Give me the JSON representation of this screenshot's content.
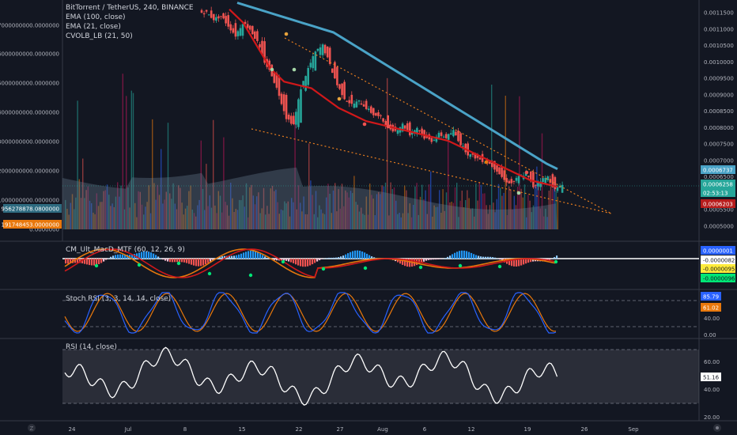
{
  "header": {
    "symbol_line": "BitTorrent / TetherUS, 240, BINANCE",
    "indicators": [
      "EMA (100, close)",
      "EMA (21, close)",
      "CVOLB_LB (21, 50)"
    ]
  },
  "colors": {
    "background": "#131722",
    "ema100": "#4aa3c7",
    "ema21": "#d1181a",
    "trendline": "#e87d1e",
    "candle_up": "#26a69a",
    "candle_down": "#ef5350",
    "pane_border": "#363a45"
  },
  "price_axis": {
    "ticks": [
      "0.0011500",
      "0.0011000",
      "0.0010500",
      "0.0010000",
      "0.0009500",
      "0.0009000",
      "0.0008500",
      "0.0008000",
      "0.0007500",
      "0.0007000",
      "0.0006500",
      "0.0006000",
      "0.0005500",
      "0.0005000"
    ],
    "tags": [
      {
        "label": "0.0006737",
        "bg": "#4aa3c7"
      },
      {
        "label": "0.0006258",
        "bg": "#26a69a"
      },
      {
        "label": "02:53:13",
        "bg": "#26a69a"
      },
      {
        "label": "0.0006203",
        "bg": "#b71c1c"
      }
    ]
  },
  "volume_axis": {
    "ticks": [
      "7000000000.0000000",
      "6000000000.0000000",
      "5000000000.0000000",
      "4000000000.0000000",
      "3000000000.0000000",
      "2000000000.0000000",
      "1000000000.0000000",
      "0.0000000"
    ],
    "tags": [
      {
        "label": "956278878.0800000",
        "bg": "#2e6b80"
      },
      {
        "label": "191748453.0000000",
        "bg": "#e8780c"
      }
    ]
  },
  "macd": {
    "label": "CM_Ult_MacD_MTF (60, 12, 26, 9)",
    "tags": [
      {
        "label": "0.0000001",
        "bg": "#2962ff"
      },
      {
        "label": "-0.0000082",
        "bg": "#ffffff"
      },
      {
        "label": "-0.0000095",
        "bg": "#ffeb3b"
      },
      {
        "label": "-0.0000096",
        "bg": "#00e676"
      }
    ]
  },
  "stoch": {
    "label": "Stoch RSI (3, 3, 14, 14, close)",
    "ticks": [
      "40.00",
      "0.00"
    ],
    "tags": [
      {
        "label": "85.79",
        "bg": "#2962ff"
      },
      {
        "label": "61.02",
        "bg": "#e8780c"
      }
    ]
  },
  "rsi": {
    "label": "RSI (14, close)",
    "ticks": [
      "60.00",
      "40.00",
      "20.00"
    ],
    "tags": [
      {
        "label": "51.16",
        "bg": "#ffffff"
      }
    ]
  },
  "time_axis": {
    "labels": [
      "24",
      "Jul",
      "8",
      "15",
      "22",
      "27",
      "Aug",
      "6",
      "12",
      "19",
      "26",
      "Sep"
    ]
  },
  "chart_data": {
    "type": "candlestick",
    "title": "BitTorrent / TetherUS, 240, BINANCE",
    "ylim": [
      0.00048,
      0.00117
    ],
    "closes": [
      0.00115,
      0.00113,
      0.00114,
      0.00111,
      0.00108,
      0.00112,
      0.0011,
      0.00106,
      0.001,
      0.00096,
      0.0009,
      0.00083,
      0.00081,
      0.00092,
      0.00098,
      0.00103,
      0.00105,
      0.00099,
      0.00093,
      0.00089,
      0.00087,
      0.00088,
      0.00086,
      0.00084,
      0.00083,
      0.0008,
      0.00079,
      0.00081,
      0.00078,
      0.0008,
      0.00077,
      0.00076,
      0.00078,
      0.00077,
      0.00079,
      0.00075,
      0.00072,
      0.00071,
      0.0007,
      0.00069,
      0.00067,
      0.00064,
      0.00063,
      0.00065,
      0.00066,
      0.00062,
      0.00064,
      0.00065,
      0.00061,
      0.00063
    ],
    "ema100": [
      0.00118,
      0.00117,
      0.00116,
      0.00115,
      0.00114,
      0.00113,
      0.00112,
      0.00111,
      0.0011,
      0.00109,
      0.00107,
      0.00105,
      0.00103,
      0.00101,
      0.00099,
      0.00097,
      0.00095,
      0.00093,
      0.00091,
      0.00089,
      0.00087,
      0.00085,
      0.00083,
      0.00081,
      0.00079,
      0.00077,
      0.00075,
      0.00073,
      0.00071,
      0.00069,
      0.000674
    ],
    "ema21": [
      0.00116,
      0.00112,
      0.00105,
      0.00098,
      0.00094,
      0.00093,
      0.00092,
      0.00089,
      0.00086,
      0.00084,
      0.00082,
      0.00081,
      0.0008,
      0.00079,
      0.00078,
      0.00077,
      0.00076,
      0.00074,
      0.00072,
      0.0007,
      0.00068,
      0.00066,
      0.00064,
      0.00063,
      0.00062
    ],
    "trendlines": [
      {
        "name": "upper",
        "from": [
          0.00108
        ],
        "to": [
          0.00055
        ]
      },
      {
        "name": "lower",
        "from": [
          0.00081
        ],
        "to": [
          0.00055
        ]
      }
    ],
    "volume_axis_range": [
      0,
      7000000000
    ],
    "macd_zero": 0,
    "stoch_levels": [
      80,
      20
    ],
    "rsi_levels": [
      70,
      30
    ],
    "rsi_range": [
      20,
      80
    ]
  }
}
